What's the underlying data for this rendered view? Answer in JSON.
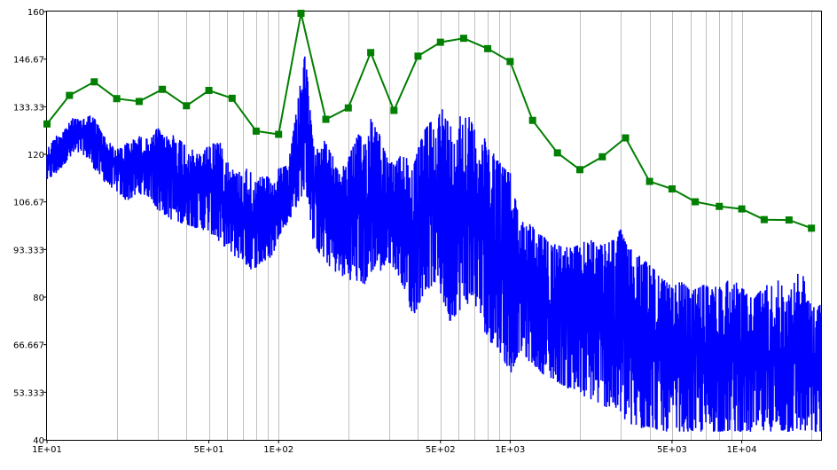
{
  "chart_data": {
    "type": "line",
    "title": "",
    "xlabel": "",
    "ylabel": "",
    "x_scale": "log",
    "xlim": [
      10,
      22000
    ],
    "ylim": [
      40,
      160
    ],
    "grid": {
      "vertical": true,
      "horizontal": false
    },
    "y_ticks": [
      {
        "value": 40,
        "label": "40"
      },
      {
        "value": 53.333,
        "label": "53.333"
      },
      {
        "value": 66.667,
        "label": "66.667"
      },
      {
        "value": 80,
        "label": "80"
      },
      {
        "value": 93.333,
        "label": "93.333"
      },
      {
        "value": 106.67,
        "label": "106.67"
      },
      {
        "value": 120,
        "label": "120"
      },
      {
        "value": 133.33,
        "label": "133.33"
      },
      {
        "value": 146.67,
        "label": "146.67"
      },
      {
        "value": 160,
        "label": "160"
      }
    ],
    "x_ticks": [
      {
        "value": 10,
        "label": "1E+01"
      },
      {
        "value": 50,
        "label": "5E+01"
      },
      {
        "value": 100,
        "label": "1E+02"
      },
      {
        "value": 500,
        "label": "5E+02"
      },
      {
        "value": 1000,
        "label": "1E+03"
      },
      {
        "value": 5000,
        "label": "5E+03"
      },
      {
        "value": 10000,
        "label": "1E+04"
      }
    ],
    "series": [
      {
        "color": "#0000ff",
        "style": "line",
        "x": [
          10,
          11,
          12,
          13,
          14,
          15,
          16,
          18,
          20,
          22,
          25,
          28,
          30,
          32,
          35,
          40,
          45,
          50,
          55,
          60,
          65,
          70,
          75,
          80,
          85,
          90,
          95,
          100,
          110,
          120,
          125,
          130,
          135,
          140,
          150,
          160,
          170,
          180,
          200,
          220,
          240,
          250,
          260,
          280,
          300,
          320,
          350,
          380,
          400,
          420,
          450,
          480,
          500,
          550,
          600,
          650,
          700,
          750,
          800,
          900,
          1000,
          1100,
          1200,
          1300,
          1400,
          1500,
          1600,
          1800,
          2000,
          2200,
          2500,
          2800,
          3000,
          3200,
          3500,
          4000,
          4500,
          5000,
          5500,
          6000,
          7000,
          8000,
          9000,
          10000,
          11000,
          12000,
          14000,
          16000,
          18000,
          20000,
          22000
        ],
        "upper": [
          122,
          126,
          128,
          131,
          130,
          132,
          131,
          125,
          122,
          124,
          126,
          125,
          129,
          126,
          127,
          124,
          121,
          124,
          126,
          120,
          116,
          117,
          118,
          113,
          116,
          115,
          112,
          117,
          118,
          135,
          144,
          150,
          140,
          126,
          128,
          125,
          122,
          117,
          121,
          128,
          126,
          133,
          134,
          125,
          119,
          120,
          123,
          118,
          124,
          128,
          133,
          128,
          137,
          131,
          134,
          135,
          130,
          128,
          127,
          121,
          118,
          104,
          103,
          101,
          99,
          98,
          97,
          96,
          97,
          99,
          97,
          99,
          102,
          97,
          95,
          92,
          88,
          85,
          87,
          84,
          86,
          85,
          88,
          85,
          82,
          84,
          88,
          83,
          91,
          79,
          80
        ],
        "lower": [
          112,
          114,
          117,
          119,
          120,
          118,
          115,
          111,
          109,
          106,
          108,
          107,
          103,
          102,
          100,
          99,
          98,
          97,
          94,
          92,
          90,
          89,
          86,
          87,
          88,
          89,
          91,
          96,
          100,
          104,
          106,
          108,
          104,
          95,
          90,
          88,
          86,
          85,
          83,
          82,
          81,
          84,
          86,
          85,
          88,
          86,
          80,
          72,
          75,
          78,
          80,
          82,
          78,
          70,
          73,
          75,
          76,
          70,
          65,
          62,
          55,
          63,
          60,
          58,
          56,
          55,
          54,
          52,
          50,
          49,
          47,
          46,
          44,
          42,
          40,
          41,
          40,
          40,
          40,
          40,
          40,
          40,
          40,
          40,
          40,
          40,
          40,
          40,
          40,
          40,
          40
        ]
      },
      {
        "color": "#007f00",
        "style": "line+square-markers",
        "x": [
          10,
          12.5,
          16,
          20,
          25,
          31.5,
          40,
          50,
          63,
          80,
          100,
          125,
          160,
          200,
          250,
          315,
          400,
          500,
          630,
          800,
          1000,
          1250,
          1600,
          2000,
          2500,
          3150,
          4000,
          5000,
          6300,
          8000,
          10000,
          12500,
          16000,
          20000
        ],
        "y": [
          128.5,
          136.5,
          140.3,
          135.6,
          134.8,
          138.2,
          133.6,
          137.9,
          135.7,
          126.5,
          125.6,
          159.5,
          129.8,
          133,
          148.5,
          132.3,
          147.5,
          151.4,
          152.5,
          149.6,
          146,
          129.5,
          120.4,
          115.7,
          119.3,
          124.6,
          112.4,
          110.3,
          106.7,
          105.4,
          104.7,
          101.7,
          101.6,
          99.3
        ]
      }
    ]
  }
}
